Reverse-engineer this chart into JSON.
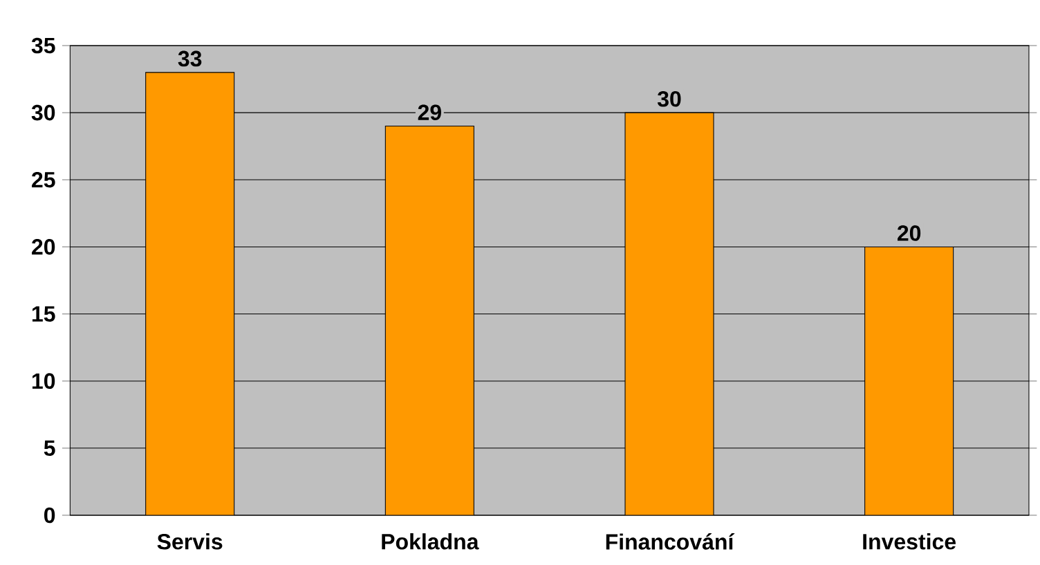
{
  "chart_data": {
    "type": "bar",
    "categories": [
      "Servis",
      "Pokladna",
      "Financování",
      "Investice"
    ],
    "values": [
      33,
      29,
      30,
      20
    ],
    "color": "#ff9900",
    "ylim": [
      0,
      35
    ],
    "yticks": [
      0,
      5,
      10,
      15,
      20,
      25,
      30,
      35
    ],
    "grid": "y",
    "data_labels": true
  }
}
